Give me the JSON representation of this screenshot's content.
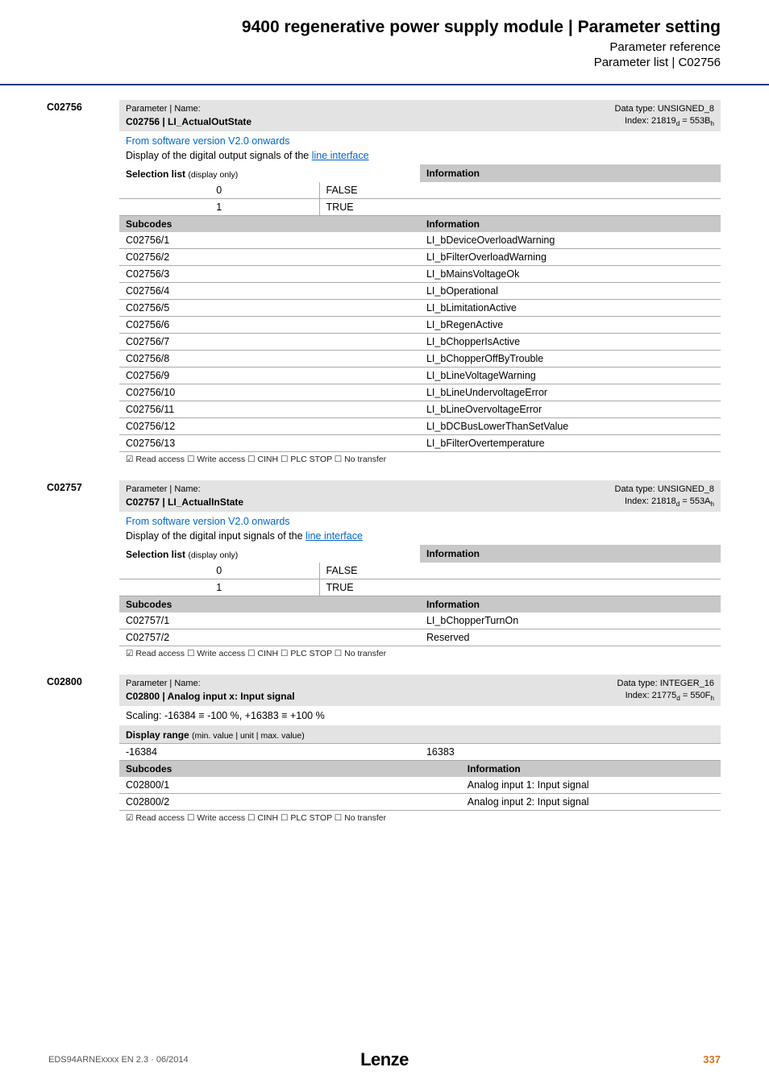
{
  "header": {
    "title": "9400 regenerative power supply module | Parameter setting",
    "sub1": "Parameter reference",
    "sub2": "Parameter list | C02756"
  },
  "params": [
    {
      "id": "C02756",
      "title_label": "Parameter | Name:",
      "title_name": "C02756 | LI_ActualOutState",
      "dtype": "Data type: UNSIGNED_8",
      "index_html": "Index: 21819<sub>d</sub> = 553B<sub>h</sub>",
      "version_link": "From software version V2.0 onwards",
      "version_text": "Display of the digital output signals of the ",
      "version_link2": "line interface",
      "selection_header": "Selection list",
      "selection_header_light": "(display only)",
      "info_header": "Information",
      "selection": [
        {
          "n": "0",
          "v": "FALSE"
        },
        {
          "n": "1",
          "v": "TRUE"
        }
      ],
      "subcodes_header": "Subcodes",
      "subcodes": [
        {
          "c": "C02756/1",
          "i": "LI_bDeviceOverloadWarning"
        },
        {
          "c": "C02756/2",
          "i": "LI_bFilterOverloadWarning"
        },
        {
          "c": "C02756/3",
          "i": "LI_bMainsVoltageOk"
        },
        {
          "c": "C02756/4",
          "i": "LI_bOperational"
        },
        {
          "c": "C02756/5",
          "i": "LI_bLimitationActive"
        },
        {
          "c": "C02756/6",
          "i": "LI_bRegenActive"
        },
        {
          "c": "C02756/7",
          "i": "LI_bChopperIsActive"
        },
        {
          "c": "C02756/8",
          "i": "LI_bChopperOffByTrouble"
        },
        {
          "c": "C02756/9",
          "i": "LI_bLineVoltageWarning"
        },
        {
          "c": "C02756/10",
          "i": "LI_bLineUndervoltageError"
        },
        {
          "c": "C02756/11",
          "i": "LI_bLineOvervoltageError"
        },
        {
          "c": "C02756/12",
          "i": "LI_bDCBusLowerThanSetValue"
        },
        {
          "c": "C02756/13",
          "i": "LI_bFilterOvertemperature"
        }
      ],
      "access": "☑ Read access   ☐ Write access   ☐ CINH   ☐ PLC STOP   ☐ No transfer"
    },
    {
      "id": "C02757",
      "title_label": "Parameter | Name:",
      "title_name": "C02757 | LI_ActualInState",
      "dtype": "Data type: UNSIGNED_8",
      "index_html": "Index: 21818<sub>d</sub> = 553A<sub>h</sub>",
      "version_link": "From software version V2.0 onwards",
      "version_text": "Display of the digital input signals of the ",
      "version_link2": "line interface",
      "selection_header": "Selection list",
      "selection_header_light": "(display only)",
      "info_header": "Information",
      "selection": [
        {
          "n": "0",
          "v": "FALSE"
        },
        {
          "n": "1",
          "v": "TRUE"
        }
      ],
      "subcodes_header": "Subcodes",
      "subcodes": [
        {
          "c": "C02757/1",
          "i": "LI_bChopperTurnOn"
        },
        {
          "c": "C02757/2",
          "i": "Reserved"
        }
      ],
      "access": "☑ Read access   ☐ Write access   ☐ CINH   ☐ PLC STOP   ☐ No transfer"
    },
    {
      "id": "C02800",
      "title_label": "Parameter | Name:",
      "title_name": "C02800 | Analog input x: Input signal",
      "dtype": "Data type: INTEGER_16",
      "index_html": "Index: 21775<sub>d</sub> = 550F<sub>h</sub>",
      "scaling": "Scaling: -16384 ≡ -100 %, +16383 ≡ +100 %",
      "range_header": "Display range",
      "range_header_light": "(min. value | unit | max. value)",
      "range_min": "-16384",
      "range_unit": "",
      "range_max": "16383",
      "subcodes_header": "Subcodes",
      "info_header": "Information",
      "subcodes": [
        {
          "c": "C02800/1",
          "i": "Analog input 1: Input signal"
        },
        {
          "c": "C02800/2",
          "i": "Analog input 2: Input signal"
        }
      ],
      "access": "☑ Read access   ☐ Write access   ☐ CINH   ☐ PLC STOP   ☐ No transfer"
    }
  ],
  "footer": {
    "doc": "EDS94ARNExxxx EN 2.3 · 06/2014",
    "logo": "Lenze",
    "page": "337"
  }
}
